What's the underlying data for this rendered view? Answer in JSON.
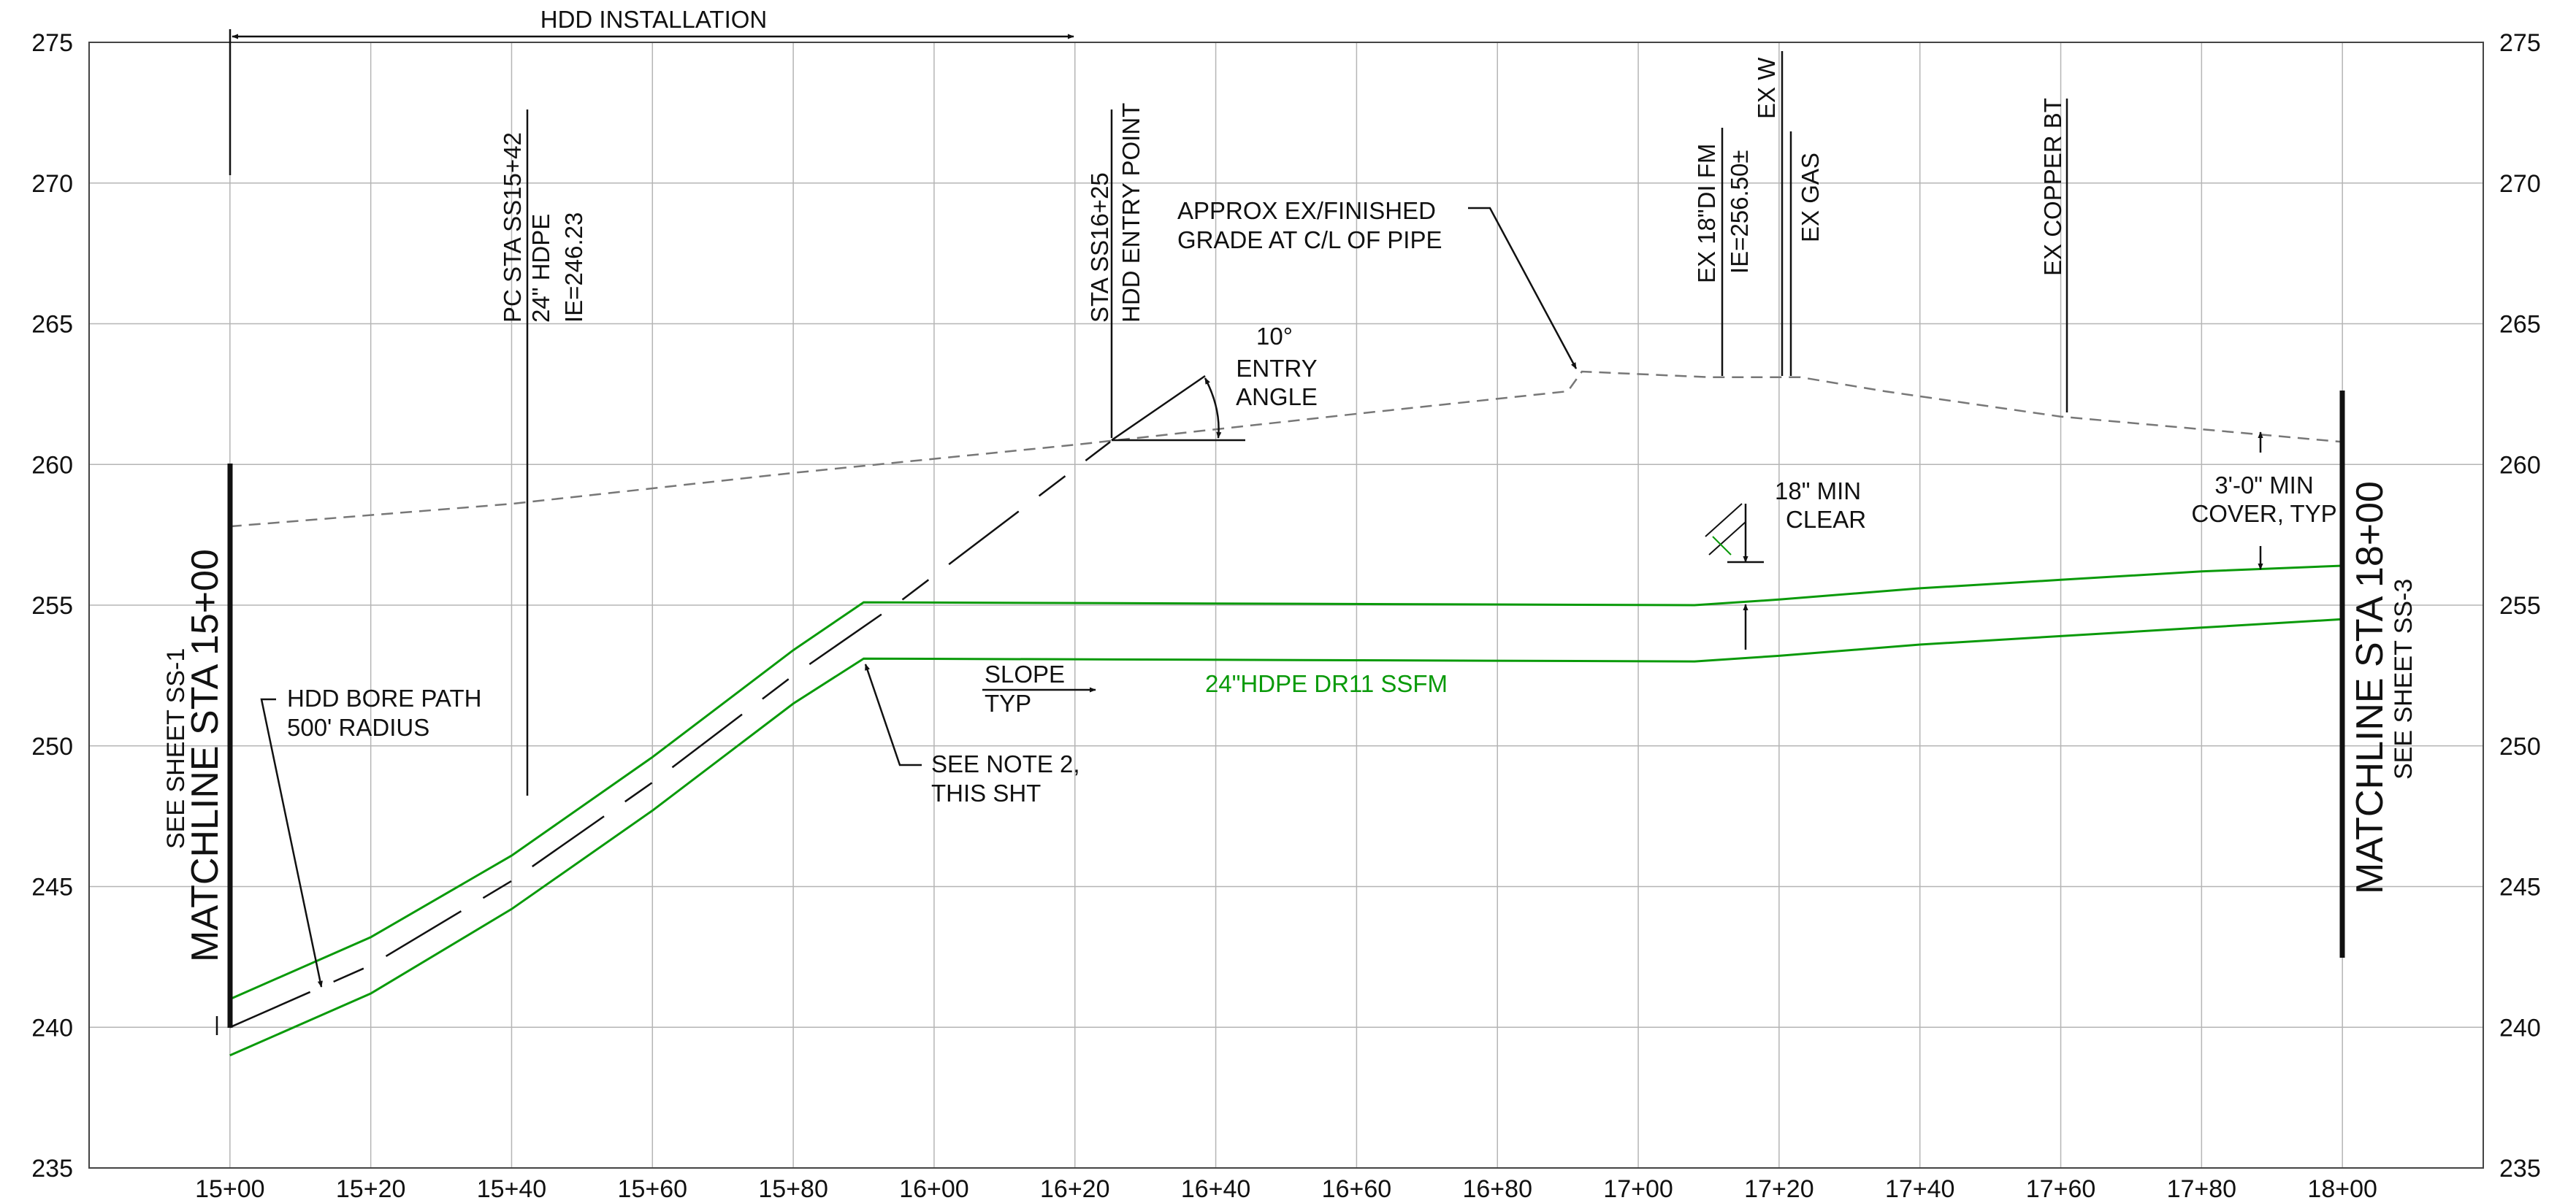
{
  "chart_data": {
    "type": "profile",
    "x_tick_labels": [
      "15+00",
      "15+20",
      "15+40",
      "15+60",
      "15+80",
      "16+00",
      "16+20",
      "16+40",
      "16+60",
      "16+80",
      "17+00",
      "17+20",
      "17+40",
      "17+60",
      "17+80",
      "18+00"
    ],
    "y_tick_labels": [
      "275",
      "270",
      "265",
      "260",
      "255",
      "250",
      "245",
      "240",
      "235"
    ],
    "xlim_feet": [
      1480,
      1820
    ],
    "ylim": [
      235,
      275
    ],
    "grid": true,
    "ground_profile": {
      "style": "dashed",
      "points": [
        [
          1500,
          257.8
        ],
        [
          1540,
          258.6
        ],
        [
          1580,
          259.7
        ],
        [
          1620,
          260.7
        ],
        [
          1660,
          261.8
        ],
        [
          1690,
          262.6
        ],
        [
          1692,
          263.3
        ],
        [
          1710,
          263.1
        ],
        [
          1723,
          263.1
        ],
        [
          1735,
          262.6
        ],
        [
          1760,
          261.7
        ],
        [
          1800,
          260.8
        ]
      ]
    },
    "pipe_outer_top": {
      "color": "#0a9a0a",
      "points": [
        [
          1500,
          241.0
        ],
        [
          1520,
          243.2
        ],
        [
          1540,
          246.1
        ],
        [
          1560,
          249.6
        ],
        [
          1580,
          253.4
        ],
        [
          1590,
          255.1
        ],
        [
          1708,
          255.0
        ],
        [
          1720,
          255.2
        ],
        [
          1740,
          255.6
        ],
        [
          1760,
          255.9
        ],
        [
          1780,
          256.2
        ],
        [
          1800,
          256.4
        ]
      ]
    },
    "pipe_outer_bottom": {
      "color": "#0a9a0a",
      "points": [
        [
          1500,
          239.0
        ],
        [
          1520,
          241.2
        ],
        [
          1540,
          244.2
        ],
        [
          1560,
          247.7
        ],
        [
          1580,
          251.5
        ],
        [
          1590,
          253.1
        ],
        [
          1708,
          253.0
        ],
        [
          1720,
          253.2
        ],
        [
          1740,
          253.6
        ],
        [
          1760,
          253.9
        ],
        [
          1780,
          254.2
        ],
        [
          1800,
          254.5
        ]
      ]
    },
    "bore_path": {
      "style": "long-dash",
      "points": [
        [
          1500,
          240.0
        ],
        [
          1520,
          242.2
        ],
        [
          1540,
          245.2
        ],
        [
          1560,
          248.7
        ],
        [
          1580,
          252.5
        ],
        [
          1595,
          255.1
        ],
        [
          1625,
          260.8
        ]
      ]
    },
    "annotations": {
      "hdd_installation": "HDD INSTALLATION",
      "pc_sta_1": "PC STA SS15+42",
      "pc_sta_2": "24\" HDPE",
      "pc_sta_3": "IE=246.23",
      "entry_sta_1": "STA SS16+25",
      "entry_sta_2": "HDD ENTRY POINT",
      "entry_angle_1": "10°",
      "entry_angle_2": "ENTRY",
      "entry_angle_3": "ANGLE",
      "grade_1": "APPROX EX/FINISHED",
      "grade_2": "GRADE AT C/L OF PIPE",
      "fm_1": "EX 18\"DI FM",
      "fm_2": "IE=256.50±",
      "ex_w": "EX W",
      "ex_gas": "EX GAS",
      "ex_copper": "EX COPPER BT",
      "clear_1": "18\" MIN",
      "clear_2": "CLEAR",
      "cover_1": "3'-0\" MIN",
      "cover_2": "COVER, TYP",
      "bore_1": "HDD BORE PATH",
      "bore_2": "500' RADIUS",
      "slope_1": "SLOPE",
      "slope_2": "TYP",
      "pipe_label": "24\"HDPE DR11 SSFM",
      "note2_1": "SEE NOTE 2,",
      "note2_2": "THIS SHT",
      "match_left_1": "SEE SHEET SS-1",
      "match_left_2": "MATCHLINE STA 15+00",
      "match_right_1": "MATCHLINE STA 18+00",
      "match_right_2": "SEE SHEET SS-3"
    }
  }
}
